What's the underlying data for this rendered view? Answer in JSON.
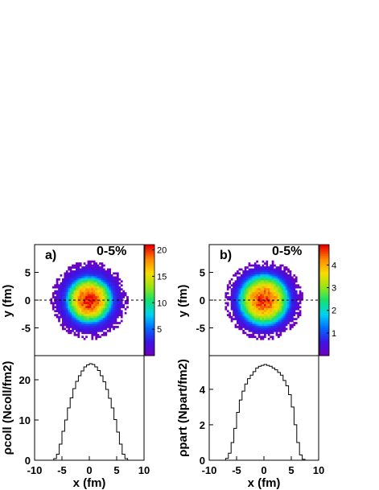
{
  "chart_data": [
    {
      "panel": "a)",
      "type": "heatmap",
      "annotation": "0-5%",
      "ylabel": "y (fm)",
      "xlim": [
        -10,
        10
      ],
      "ylim": [
        -10,
        10
      ],
      "y_ticks": [
        -5,
        0,
        5
      ],
      "z_range": [
        0,
        21
      ],
      "colorbar_ticks": [
        5,
        10,
        15,
        20
      ],
      "profile": {
        "peak": 21,
        "core_radius_fm": 4.5,
        "edge_radius_fm": 6.7
      }
    },
    {
      "panel": "a)",
      "type": "line",
      "ylabel": "ρcoll (Ncoll/fm2)",
      "xlabel": "x (fm)",
      "xlim": [
        -10,
        10
      ],
      "ylim": [
        0,
        26
      ],
      "x_ticks": [
        -10,
        -5,
        0,
        5,
        10
      ],
      "y_ticks": [
        0,
        10,
        20
      ],
      "x": [
        -8,
        -7,
        -6.5,
        -6,
        -5.5,
        -5,
        -4.5,
        -4,
        -3.5,
        -3,
        -2.5,
        -2,
        -1.5,
        -1,
        -0.5,
        0,
        0.5,
        1,
        1.5,
        2,
        2.5,
        3,
        3.5,
        4,
        4.5,
        5,
        5.5,
        6,
        6.5,
        7,
        8
      ],
      "y": [
        0,
        0,
        0.4,
        1.5,
        4.0,
        7.2,
        10.0,
        13.0,
        15.5,
        17.8,
        19.6,
        21.0,
        22.2,
        23.2,
        23.7,
        24.0,
        23.8,
        23.2,
        22.3,
        21.0,
        19.5,
        17.6,
        15.4,
        13.0,
        10.1,
        7.0,
        4.0,
        1.5,
        0.4,
        0,
        0
      ]
    },
    {
      "panel": "b)",
      "type": "heatmap",
      "annotation": "0-5%",
      "ylabel": "y (fm)",
      "xlim": [
        -10,
        10
      ],
      "ylim": [
        -10,
        10
      ],
      "y_ticks": [
        -5,
        0,
        5
      ],
      "z_range": [
        0,
        4.9
      ],
      "colorbar_ticks": [
        1,
        2,
        3,
        4
      ],
      "profile": {
        "peak": 4.7,
        "core_radius_fm": 5.0,
        "edge_radius_fm": 6.8
      }
    },
    {
      "panel": "b)",
      "type": "line",
      "ylabel": "ρpart (Npart/fm2)",
      "xlabel": "x (fm)",
      "xlim": [
        -10,
        10
      ],
      "ylim": [
        0,
        5.9
      ],
      "x_ticks": [
        -10,
        -5,
        0,
        5,
        10
      ],
      "y_ticks": [
        0,
        2,
        4
      ],
      "x": [
        -8,
        -7.5,
        -7,
        -6.5,
        -6,
        -5.5,
        -5,
        -4.5,
        -4,
        -3.5,
        -3,
        -2.5,
        -2,
        -1.5,
        -1,
        -0.5,
        0,
        0.5,
        1,
        1.5,
        2,
        2.5,
        3,
        3.5,
        4,
        4.5,
        5,
        5.5,
        6,
        6.5,
        7,
        7.5,
        8
      ],
      "y": [
        0,
        0,
        0.1,
        0.4,
        1.0,
        1.8,
        2.7,
        3.4,
        3.9,
        4.3,
        4.6,
        4.8,
        5.0,
        5.2,
        5.3,
        5.35,
        5.4,
        5.35,
        5.3,
        5.2,
        5.1,
        4.95,
        4.8,
        4.5,
        4.2,
        3.7,
        3.0,
        2.0,
        1.0,
        0.3,
        0.05,
        0,
        0
      ]
    }
  ]
}
